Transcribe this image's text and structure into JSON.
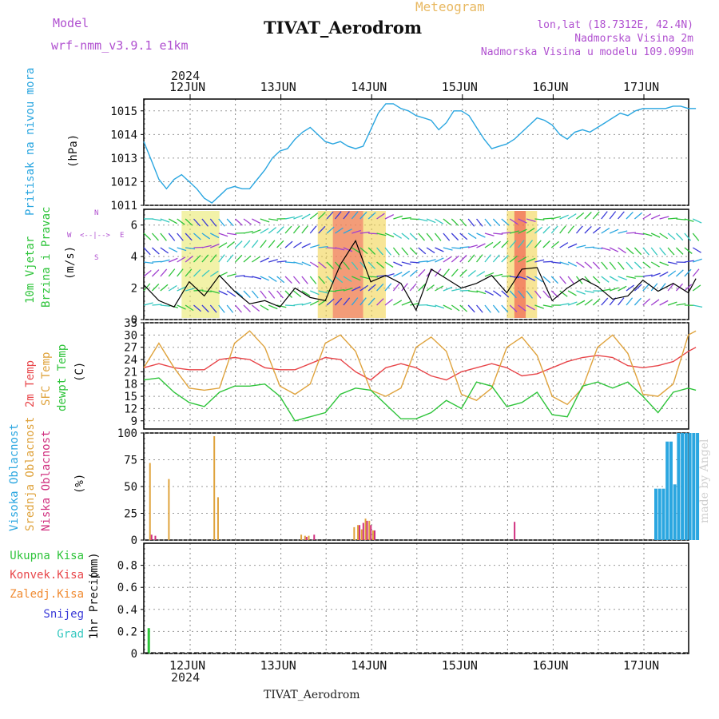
{
  "header": {
    "meteogram": "Meteogram",
    "title": "TIVAT_Aerodrom",
    "model_label": "Model",
    "model_name": "wrf-nmm_v3.9.1 e1km",
    "lonlat": "lon,lat (18.7312E, 42.4N)",
    "elevation": "Nadmorska Visina 2m",
    "model_elevation": "Nadmorska Visina u modelu 109.099m",
    "year_top": "2024",
    "year_bottom": "2024",
    "footer": "TIVAT_Aerodrom",
    "credit": "made by Angel"
  },
  "colors": {
    "pressure": "#2aa6e0",
    "temp2m": "#e8464a",
    "sfc": "#dfa33d",
    "dewpt": "#2ec43a",
    "high_cloud": "#2aa6e0",
    "mid_cloud": "#dfa33d",
    "low_cloud": "#d0307f",
    "precip_total": "#2ec43a",
    "precip_conv": "#e8464a",
    "precip_frz": "#f08a30",
    "snow": "#3a3ad8",
    "grad": "#35c8c0",
    "purple": "#b050d0"
  },
  "chart_data": [
    {
      "type": "line",
      "panel": "pressure",
      "ylabel_name": "Pritisak na nivou mora",
      "ylabel_unit": "(hPa)",
      "ylim": [
        1011,
        1015.5
      ],
      "yticks": [
        "1011",
        "1012",
        "1013",
        "1014",
        "1015"
      ],
      "x_hours": [
        0,
        2,
        4,
        6,
        8,
        10,
        12,
        14,
        16,
        18,
        20,
        22,
        24,
        26,
        28,
        30,
        32,
        34,
        36,
        38,
        40,
        42,
        44,
        46,
        48,
        50,
        52,
        54,
        56,
        58,
        60,
        62,
        64,
        66,
        68,
        70,
        72,
        74,
        76,
        78,
        80,
        82,
        84,
        86,
        88,
        90,
        92,
        94,
        96,
        98,
        100,
        102,
        104,
        106,
        108,
        110,
        112,
        114,
        116,
        118,
        120,
        122,
        124,
        126,
        128,
        130,
        132,
        134,
        136,
        138,
        140,
        142,
        144,
        146
      ],
      "values": [
        1013.7,
        1012.9,
        1012.1,
        1011.7,
        1012.1,
        1012.3,
        1012.0,
        1011.7,
        1011.3,
        1011.1,
        1011.4,
        1011.7,
        1011.8,
        1011.7,
        1011.7,
        1012.1,
        1012.5,
        1013.0,
        1013.3,
        1013.4,
        1013.8,
        1014.1,
        1014.3,
        1014.0,
        1013.7,
        1013.6,
        1013.7,
        1013.5,
        1013.4,
        1013.5,
        1014.2,
        1014.9,
        1015.3,
        1015.3,
        1015.1,
        1015.0,
        1014.8,
        1014.7,
        1014.6,
        1014.2,
        1014.5,
        1015.0,
        1015.0,
        1014.8,
        1014.3,
        1013.8,
        1013.4,
        1013.5,
        1013.6,
        1013.8,
        1014.1,
        1014.4,
        1014.7,
        1014.6,
        1014.4,
        1014.0,
        1013.8,
        1014.1,
        1014.2,
        1014.1,
        1014.3,
        1014.5,
        1014.7,
        1014.9,
        1014.8,
        1015.0,
        1015.1,
        1015.1,
        1015.1,
        1015.1,
        1015.2,
        1015.2,
        1015.1,
        1015.1
      ]
    },
    {
      "type": "line",
      "panel": "wind",
      "ylabel_name": "10m Vjetar",
      "ylabel_name2": "Brzina i Pravac",
      "ylabel_unit": "(m/s)",
      "ylim": [
        0,
        7
      ],
      "yticks": [
        "0",
        "2",
        "4",
        "6"
      ],
      "compass": {
        "n": "N",
        "w": "W",
        "e": "E",
        "s": "S",
        "arrows": "<--|-->"
      },
      "x_hours": [
        0,
        4,
        8,
        12,
        16,
        20,
        24,
        28,
        32,
        36,
        40,
        44,
        48,
        52,
        56,
        60,
        64,
        68,
        72,
        76,
        80,
        84,
        88,
        92,
        96,
        100,
        104,
        108,
        112,
        116,
        120,
        124,
        128,
        132,
        136,
        140,
        144,
        146
      ],
      "speed": [
        2.2,
        1.2,
        0.8,
        2.4,
        1.5,
        2.8,
        1.8,
        1.0,
        1.2,
        0.8,
        2.0,
        1.4,
        1.2,
        3.5,
        5.0,
        2.4,
        2.8,
        2.3,
        0.6,
        3.2,
        2.6,
        2.0,
        2.3,
        2.8,
        1.7,
        3.2,
        3.3,
        1.2,
        2.0,
        2.6,
        2.1,
        1.3,
        1.5,
        2.5,
        1.8,
        2.3,
        1.7,
        2.6
      ]
    },
    {
      "type": "line",
      "panel": "temperature",
      "ylabel_name": "2m Temp",
      "ylabel_name2": "SFC Temp",
      "ylabel_name3": "dewpt Temp",
      "ylabel_unit": "(C)",
      "ylim": [
        7,
        33
      ],
      "yticks": [
        "9",
        "12",
        "15",
        "18",
        "21",
        "24",
        "27",
        "30",
        "33"
      ],
      "x_hours": [
        0,
        4,
        8,
        12,
        16,
        20,
        24,
        28,
        32,
        36,
        40,
        44,
        48,
        52,
        56,
        60,
        64,
        68,
        72,
        76,
        80,
        84,
        88,
        92,
        96,
        100,
        104,
        108,
        112,
        116,
        120,
        124,
        128,
        132,
        136,
        140,
        144,
        146
      ],
      "series": [
        {
          "name": "2m Temp",
          "values": [
            22,
            23,
            22,
            21.5,
            21.5,
            24,
            24.5,
            24,
            22,
            21.5,
            21.5,
            23,
            24.5,
            24,
            21,
            19,
            22,
            23,
            22,
            20,
            19,
            21,
            22,
            23,
            22,
            20,
            20.5,
            22,
            23.5,
            24.5,
            25,
            24.5,
            22.5,
            22,
            22.5,
            23.5,
            26,
            27
          ]
        },
        {
          "name": "SFC Temp",
          "values": [
            22,
            28,
            22,
            17,
            16.5,
            17,
            28,
            31,
            27,
            17.5,
            15.5,
            18,
            28,
            30,
            26,
            16.5,
            15,
            17,
            27,
            29.5,
            26,
            15.5,
            14,
            17,
            27,
            29.5,
            25,
            15,
            13,
            17,
            27,
            30,
            25.5,
            15.5,
            15,
            18,
            30,
            31
          ]
        },
        {
          "name": "dewpt Temp",
          "values": [
            19,
            19.5,
            16,
            13.5,
            12.5,
            16,
            17.5,
            17.5,
            18,
            15,
            9,
            10,
            11,
            15.5,
            17,
            16.5,
            13,
            9.5,
            9.5,
            11,
            14,
            12,
            18.5,
            17.5,
            12.5,
            13.5,
            16,
            10.5,
            10,
            17.5,
            18.5,
            17,
            18.5,
            15,
            11,
            16,
            17,
            16.5
          ]
        }
      ]
    },
    {
      "type": "bar",
      "panel": "cloud",
      "ylabel_name": "Visoka Oblacnost",
      "ylabel_name2": "Srednja Oblacnost",
      "ylabel_name3": "Niska Oblacnost",
      "ylabel_unit": "(%)",
      "ylim": [
        0,
        100
      ],
      "yticks": [
        "0",
        "25",
        "50",
        "75",
        "100"
      ],
      "series": [
        {
          "name": "Visoka Oblacnost",
          "x": [
            135,
            136,
            137,
            138,
            139,
            140,
            141,
            142,
            143,
            144,
            145,
            146
          ],
          "values": [
            48,
            48,
            48,
            92,
            92,
            52,
            100,
            100,
            100,
            100,
            100,
            100
          ]
        },
        {
          "name": "Srednja Oblacnost",
          "x": [
            1,
            6,
            18,
            19,
            41,
            42,
            43,
            55,
            56,
            57,
            58,
            59,
            60
          ],
          "values": [
            72,
            57,
            97,
            40,
            5,
            4,
            4,
            12,
            14,
            10,
            20,
            18,
            9
          ]
        },
        {
          "name": "Niska Oblacnost",
          "x": [
            1,
            2,
            42,
            44,
            56,
            57,
            58,
            59,
            60,
            97
          ],
          "values": [
            5,
            4,
            3,
            5,
            14,
            16,
            18,
            14,
            9,
            17
          ]
        }
      ]
    },
    {
      "type": "bar",
      "panel": "precip",
      "ylabel_name": "1hr Precip",
      "ylabel_unit": "(mm)",
      "ylim": [
        0,
        1
      ],
      "yticks": [
        "0",
        "0.2",
        "0.4",
        "0.6",
        "0.8"
      ],
      "legend": [
        "Ukupna Kisa",
        "Konvek.Kisa",
        "Zaledj.Kisa",
        "Snijeg",
        "Grad"
      ],
      "series": [
        {
          "name": "Ukupna Kisa",
          "x": [
            1
          ],
          "values": [
            0.23
          ]
        }
      ]
    }
  ],
  "x_axis": {
    "labels": [
      "12JUN",
      "13JUN",
      "14JUN",
      "15JUN",
      "16JUN",
      "17JUN"
    ]
  }
}
